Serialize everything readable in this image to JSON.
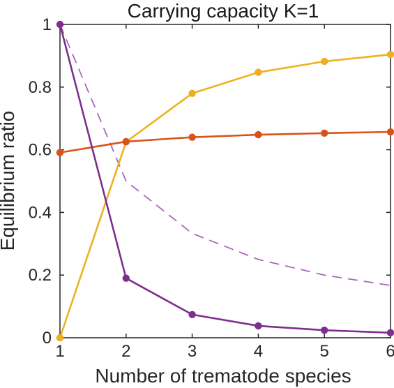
{
  "chart_data": {
    "type": "line",
    "title": "Carrying capacity K=1",
    "xlabel": "Number of trematode species",
    "ylabel": "Equilibrium ratio",
    "xlim": [
      1,
      6
    ],
    "ylim": [
      0,
      1
    ],
    "x": [
      1,
      2,
      3,
      4,
      5,
      6
    ],
    "xticks": [
      "1",
      "2",
      "3",
      "4",
      "5",
      "6"
    ],
    "yticks": [
      "0",
      "0.2",
      "0.4",
      "0.6",
      "0.8",
      "1"
    ],
    "grid": false,
    "legend": "none",
    "series": [
      {
        "color": "#EDB120",
        "style": "solid",
        "markers": true,
        "values": [
          0.0,
          0.625,
          0.78,
          0.847,
          0.882,
          0.904
        ]
      },
      {
        "color": "#D95319",
        "style": "solid",
        "markers": true,
        "values": [
          0.591,
          0.626,
          0.64,
          0.648,
          0.653,
          0.657
        ]
      },
      {
        "color": "#7E2F8E",
        "style": "solid",
        "markers": true,
        "values": [
          1.0,
          0.19,
          0.074,
          0.038,
          0.024,
          0.016
        ]
      },
      {
        "color": "#A66BB5",
        "style": "dashed",
        "markers": false,
        "values": [
          1.0,
          0.5,
          0.333,
          0.25,
          0.2,
          0.167
        ]
      }
    ]
  }
}
